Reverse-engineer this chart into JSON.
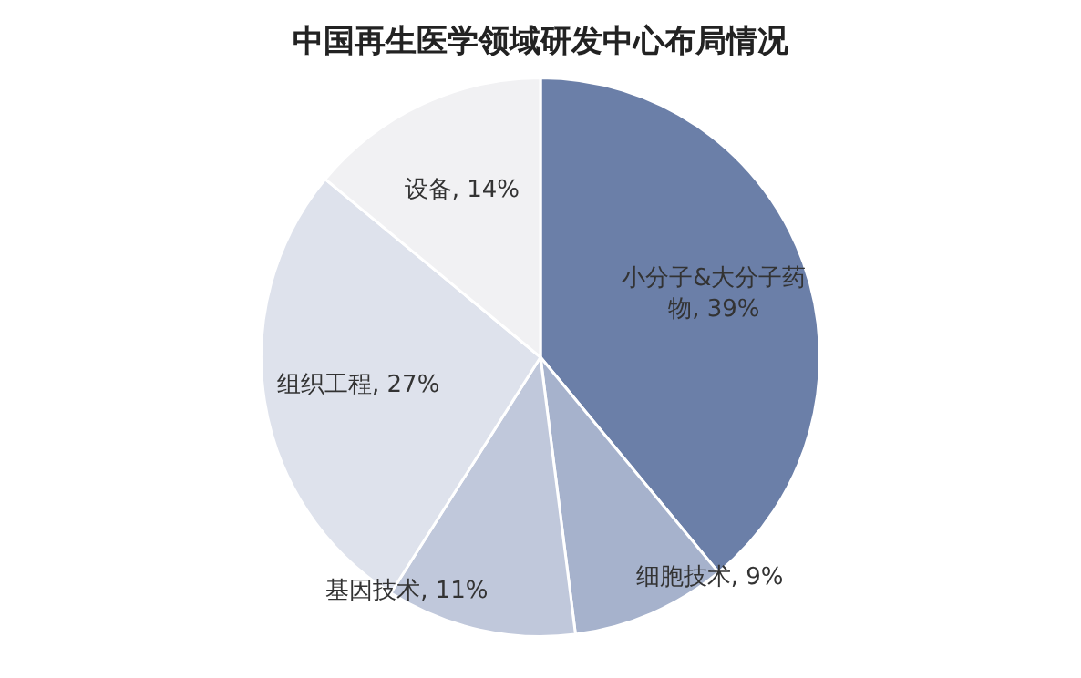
{
  "chart_data": {
    "type": "pie",
    "title": "中国再生医学领域研发中心布局情况",
    "categories": [
      "小分子&大分子药物",
      "细胞技术",
      "基因技术",
      "组织工程",
      "设备"
    ],
    "values": [
      39,
      9,
      11,
      27,
      14
    ],
    "value_labels": [
      "39%",
      "9%",
      "11%",
      "27%",
      "14%"
    ],
    "colors": [
      "#6b7fa8",
      "#a6b2cc",
      "#c0c8db",
      "#dee2ec",
      "#f1f1f3"
    ],
    "legend": false
  }
}
